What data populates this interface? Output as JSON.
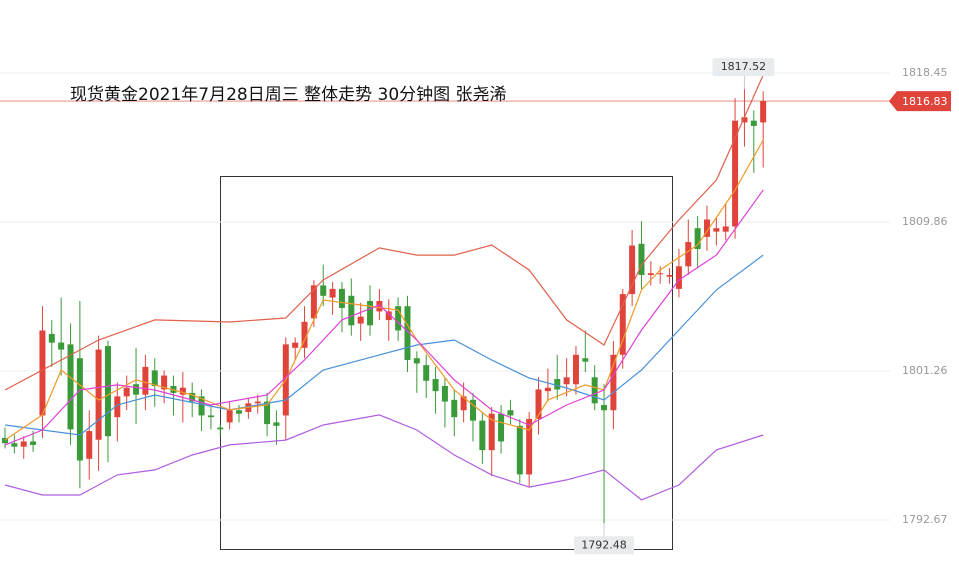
{
  "chart_data": {
    "type": "candlestick",
    "title": "现货黄金2021年7月28日周三  整体走势 30分钟图 张尧浠",
    "ylim": [
      1789.44,
      1822.66
    ],
    "yticks": [
      1792.67,
      1801.26,
      1809.86,
      1818.45
    ],
    "grid": true,
    "up_color": "#e0433a",
    "down_color": "#3a9a3a",
    "candles": {
      "open": [
        1797.4,
        1797.1,
        1796.9,
        1797.2,
        1798.7,
        1803.4,
        1802.9,
        1802.8,
        1802.0,
        1796.2,
        1797.3,
        1802.7,
        1798.6,
        1799.8,
        1800.5,
        1799.9,
        1801.3,
        1800.2,
        1800.4,
        1799.9,
        1800.0,
        1799.8,
        1798.7,
        1798.0,
        1798.3,
        1799.0,
        1798.9,
        1799.4,
        1799.5,
        1798.3,
        1798.7,
        1802.6,
        1802.6,
        1804.3,
        1806.2,
        1805.5,
        1806.0,
        1805.6,
        1804.0,
        1805.3,
        1804.7,
        1804.2,
        1805.0,
        1805.0,
        1802.0,
        1801.6,
        1800.8,
        1800.4,
        1799.6,
        1799.0,
        1799.6,
        1798.4,
        1796.7,
        1798.8,
        1799.0,
        1798.1,
        1795.3,
        1798.5,
        1800.1,
        1800.8,
        1800.5,
        1800.5,
        1802.0,
        1800.9,
        1799.3,
        1799.0,
        1802.2,
        1805.7,
        1808.6,
        1806.8,
        1806.9,
        1806.7,
        1806.0,
        1807.3,
        1809.5,
        1809.0,
        1809.3,
        1809.3,
        1809.6,
        1815.6,
        1815.7,
        1815.6
      ],
      "high": [
        1798.0,
        1797.6,
        1797.5,
        1797.8,
        1805.0,
        1804.2,
        1805.5,
        1804.0,
        1805.3,
        1799.0,
        1803.3,
        1803.0,
        1800.6,
        1801.0,
        1802.6,
        1802.2,
        1802.0,
        1801.3,
        1801.0,
        1801.2,
        1800.6,
        1800.2,
        1799.2,
        1798.2,
        1799.5,
        1799.3,
        1799.7,
        1799.9,
        1800.0,
        1799.0,
        1803.2,
        1803.2,
        1805.0,
        1806.5,
        1807.4,
        1806.4,
        1806.4,
        1806.6,
        1805.2,
        1806.2,
        1806.0,
        1805.4,
        1805.5,
        1805.6,
        1802.4,
        1802.2,
        1801.5,
        1800.9,
        1800.2,
        1800.6,
        1800.0,
        1798.9,
        1799.2,
        1799.3,
        1799.6,
        1798.5,
        1798.9,
        1800.9,
        1801.4,
        1802.2,
        1802.0,
        1802.7,
        1803.6,
        1801.6,
        1800.5,
        1803.0,
        1806.0,
        1809.4,
        1809.9,
        1807.6,
        1807.3,
        1807.2,
        1808.3,
        1810.0,
        1810.2,
        1810.8,
        1810.1,
        1810.9,
        1817.0,
        1817.52,
        1816.3,
        1817.4
      ],
      "low": [
        1796.8,
        1796.5,
        1796.2,
        1796.6,
        1797.4,
        1801.5,
        1801.0,
        1797.0,
        1794.5,
        1795.0,
        1795.5,
        1796.0,
        1797.2,
        1799.0,
        1798.2,
        1799.0,
        1799.2,
        1799.4,
        1798.7,
        1798.3,
        1798.6,
        1797.8,
        1797.9,
        1797.5,
        1797.9,
        1798.3,
        1798.5,
        1798.8,
        1797.5,
        1797.0,
        1797.3,
        1801.9,
        1802.0,
        1803.8,
        1805.0,
        1804.5,
        1803.5,
        1803.3,
        1803.0,
        1803.3,
        1804.2,
        1803.0,
        1803.0,
        1801.2,
        1800.0,
        1799.7,
        1798.8,
        1798.0,
        1797.5,
        1798.3,
        1797.2,
        1795.9,
        1795.2,
        1796.5,
        1798.2,
        1794.8,
        1794.6,
        1797.6,
        1799.5,
        1799.6,
        1799.8,
        1799.9,
        1801.2,
        1799.0,
        1792.48,
        1797.9,
        1801.4,
        1805.0,
        1806.0,
        1806.2,
        1806.3,
        1806.3,
        1805.5,
        1806.8,
        1807.2,
        1808.2,
        1808.5,
        1808.8,
        1808.9,
        1814.2,
        1812.7,
        1813.0
      ],
      "close": [
        1797.1,
        1796.9,
        1797.2,
        1797.0,
        1803.6,
        1802.9,
        1802.5,
        1797.9,
        1796.1,
        1797.8,
        1802.5,
        1797.5,
        1799.8,
        1800.3,
        1799.9,
        1801.5,
        1800.4,
        1801.0,
        1800.0,
        1800.3,
        1799.5,
        1798.7,
        1798.6,
        1797.9,
        1799.0,
        1798.8,
        1799.4,
        1799.5,
        1798.2,
        1798.1,
        1802.8,
        1802.9,
        1804.1,
        1806.2,
        1805.6,
        1806.0,
        1804.9,
        1803.9,
        1804.4,
        1803.9,
        1805.3,
        1804.7,
        1803.6,
        1801.9,
        1801.7,
        1800.7,
        1800.1,
        1799.5,
        1798.6,
        1799.8,
        1798.4,
        1796.7,
        1798.8,
        1797.2,
        1798.7,
        1795.3,
        1798.5,
        1800.2,
        1800.3,
        1800.2,
        1800.9,
        1802.2,
        1801.8,
        1799.4,
        1799.0,
        1802.2,
        1805.7,
        1808.5,
        1806.8,
        1806.9,
        1806.9,
        1806.8,
        1807.3,
        1808.7,
        1808.3,
        1810.0,
        1809.5,
        1809.6,
        1815.7,
        1815.9,
        1815.4,
        1816.83
      ]
    },
    "overlays": [
      {
        "color": "#e0604c",
        "x": [
          0,
          10,
          16,
          24,
          30,
          34,
          40,
          44,
          48,
          52,
          56,
          60,
          64,
          68,
          72,
          76,
          81
        ],
        "values": [
          1800.17,
          1803.05,
          1804.21,
          1804.09,
          1804.32,
          1806.51,
          1808.36,
          1807.95,
          1807.95,
          1808.53,
          1807.09,
          1804.21,
          1802.76,
          1807.38,
          1809.97,
          1812.28,
          1818.33
        ]
      },
      {
        "color": "#4a90d9",
        "x": [
          0,
          8,
          12,
          16,
          24,
          30,
          34,
          40,
          44,
          48,
          52,
          56,
          60,
          64,
          68,
          72,
          76,
          81
        ],
        "values": [
          1798.15,
          1797.57,
          1799.3,
          1799.88,
          1799.02,
          1799.59,
          1801.32,
          1802.19,
          1802.76,
          1803.05,
          1801.9,
          1800.86,
          1800.28,
          1799.59,
          1801.32,
          1803.63,
          1805.94,
          1807.95
        ]
      },
      {
        "color": "#b05ee0",
        "x": [
          0,
          4,
          8,
          12,
          16,
          20,
          24,
          30,
          34,
          40,
          44,
          48,
          52,
          56,
          60,
          64,
          68,
          72,
          76,
          81
        ],
        "values": [
          1794.69,
          1794.11,
          1794.11,
          1795.27,
          1795.56,
          1796.42,
          1797.0,
          1797.28,
          1798.15,
          1798.73,
          1797.86,
          1796.42,
          1795.27,
          1794.57,
          1794.98,
          1795.56,
          1793.83,
          1794.69,
          1796.71,
          1797.57
        ]
      },
      {
        "color": "#f09a2a",
        "x": [
          0,
          4,
          6,
          10,
          14,
          20,
          24,
          28,
          30,
          32,
          34,
          38,
          42,
          44,
          48,
          52,
          56,
          58,
          62,
          64,
          66,
          68,
          70,
          74,
          78,
          81
        ],
        "values": [
          1797.28,
          1798.73,
          1801.32,
          1799.59,
          1800.75,
          1799.88,
          1799.02,
          1799.3,
          1800.75,
          1803.05,
          1805.36,
          1805.07,
          1804.78,
          1803.05,
          1800.17,
          1798.44,
          1797.86,
          1799.59,
          1800.46,
          1800.17,
          1803.05,
          1805.94,
          1807.09,
          1808.53,
          1811.7,
          1814.59
        ]
      },
      {
        "color": "#e040d8",
        "x": [
          0,
          4,
          8,
          12,
          16,
          22,
          28,
          32,
          36,
          40,
          44,
          48,
          52,
          56,
          60,
          64,
          68,
          72,
          76,
          81
        ],
        "values": [
          1797.0,
          1797.86,
          1800.17,
          1800.46,
          1800.17,
          1799.3,
          1799.88,
          1801.9,
          1804.21,
          1805.07,
          1803.05,
          1800.75,
          1799.02,
          1798.15,
          1799.3,
          1800.17,
          1803.63,
          1806.51,
          1807.95,
          1811.7
        ]
      }
    ]
  }
}
